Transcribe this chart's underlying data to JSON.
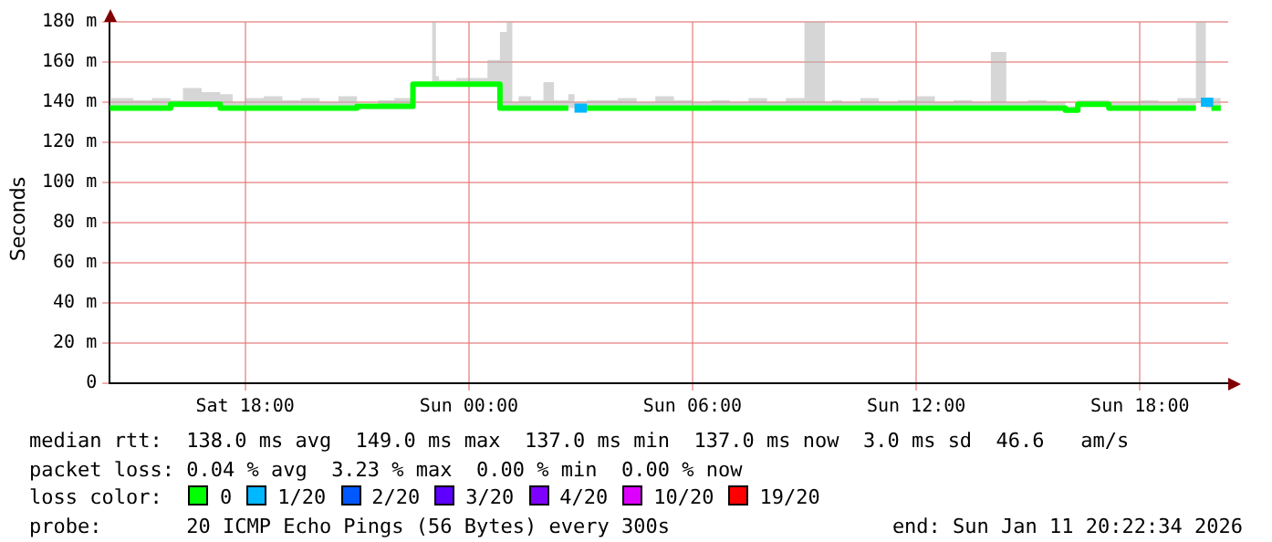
{
  "chart_data": {
    "type": "step",
    "ylabel": "Seconds",
    "legend_title": "loss color:",
    "legend": "bottom",
    "grid": true,
    "marker": "none",
    "xlim": [
      "2026-01-10T14:22",
      "2026-01-11T20:22"
    ],
    "xticks": [
      {
        "value": "2026-01-10T18:00",
        "label": "Sat 18:00"
      },
      {
        "value": "2026-01-11T00:00",
        "label": "Sun 00:00"
      },
      {
        "value": "2026-01-11T06:00",
        "label": "Sun 06:00"
      },
      {
        "value": "2026-01-11T12:00",
        "label": "Sun 12:00"
      },
      {
        "value": "2026-01-11T18:00",
        "label": "Sun 18:00"
      }
    ],
    "ylim": [
      0,
      180
    ],
    "yticks": [
      0,
      {
        "value": 20,
        "label": "20 m"
      },
      {
        "value": 40,
        "label": "40 m"
      },
      {
        "value": 60,
        "label": "60 m"
      },
      {
        "value": 80,
        "label": "80 m"
      },
      {
        "value": 100,
        "label": "100 m"
      },
      {
        "value": 120,
        "label": "120 m"
      },
      {
        "value": 140,
        "label": "140 m"
      },
      {
        "value": 160,
        "label": "160 m"
      },
      {
        "value": 180,
        "label": "180 m"
      }
    ],
    "series": [
      {
        "name": "0",
        "color": "#00ff00",
        "x": [
          "2026-01-10T14:22",
          "2026-01-10T15:00",
          "2026-01-10T15:30",
          "2026-01-10T16:00",
          "2026-01-10T16:20",
          "2026-01-10T16:50",
          "2026-01-10T17:20",
          "2026-01-10T17:40",
          "2026-01-10T18:00",
          "2026-01-10T18:30",
          "2026-01-10T19:00",
          "2026-01-10T19:30",
          "2026-01-10T20:00",
          "2026-01-10T20:30",
          "2026-01-10T21:00",
          "2026-01-10T21:34",
          "2026-01-10T22:00",
          "2026-01-10T22:30",
          "2026-01-10T23:01",
          "2026-01-10T23:07",
          "2026-01-10T23:12",
          "2026-01-10T23:40",
          "2026-01-11T00:00",
          "2026-01-11T00:30",
          "2026-01-11T00:50",
          "2026-01-11T01:01",
          "2026-01-11T01:10",
          "2026-01-11T01:20",
          "2026-01-11T01:40",
          "2026-01-11T02:00",
          "2026-01-11T02:17",
          "2026-01-11T02:40",
          "2026-01-11T02:50",
          "2026-01-11T03:10",
          "2026-01-11T04:00",
          "2026-01-11T04:30",
          "2026-01-11T05:00",
          "2026-01-11T05:30",
          "2026-01-11T06:00",
          "2026-01-11T06:30",
          "2026-01-11T07:00",
          "2026-01-11T07:30",
          "2026-01-11T08:00",
          "2026-01-11T08:30",
          "2026-01-11T09:00",
          "2026-01-11T09:33",
          "2026-01-11T09:45",
          "2026-01-11T10:00",
          "2026-01-11T10:30",
          "2026-01-11T11:00",
          "2026-01-11T11:30",
          "2026-01-11T12:00",
          "2026-01-11T12:30",
          "2026-01-11T13:00",
          "2026-01-11T13:30",
          "2026-01-11T14:00",
          "2026-01-11T14:25",
          "2026-01-11T14:35",
          "2026-01-11T15:00",
          "2026-01-11T15:30",
          "2026-01-11T16:00",
          "2026-01-11T16:20",
          "2026-01-11T16:40",
          "2026-01-11T17:10",
          "2026-01-11T17:37",
          "2026-01-11T18:00",
          "2026-01-11T18:30",
          "2026-01-11T19:00",
          "2026-01-11T19:30",
          "2026-01-11T19:46",
          "2026-01-11T19:55",
          "2026-01-11T20:10"
        ],
        "values": [
          137,
          137,
          137,
          137,
          139,
          139,
          139,
          137,
          137,
          137,
          137,
          137,
          137,
          137,
          137,
          138,
          138,
          138,
          149,
          149,
          149,
          149,
          149,
          149,
          149,
          137,
          137,
          137,
          137,
          137,
          137,
          137,
          null,
          137,
          137,
          137,
          137,
          137,
          137,
          137,
          137,
          137,
          137,
          137,
          137,
          137,
          137,
          137,
          137,
          137,
          137,
          137,
          137,
          137,
          137,
          137,
          137,
          137,
          137,
          137,
          137,
          136,
          139,
          139,
          137,
          137,
          137,
          137,
          137,
          null,
          137,
          137
        ],
        "lower": [
          137,
          137,
          137,
          137,
          139,
          139,
          139,
          137,
          137,
          137,
          137,
          137,
          137,
          137,
          137,
          138,
          138,
          138,
          149,
          149,
          149,
          149,
          149,
          149,
          149,
          137,
          137,
          137,
          137,
          137,
          137,
          137,
          137,
          137,
          137,
          137,
          137,
          137,
          137,
          137,
          137,
          137,
          137,
          137,
          137,
          137,
          137,
          137,
          137,
          137,
          137,
          137,
          137,
          137,
          137,
          137,
          137,
          137,
          137,
          137,
          137,
          136,
          139,
          139,
          137,
          137,
          137,
          137,
          137,
          140,
          137,
          137
        ],
        "upper": [
          141,
          142,
          141,
          142,
          141,
          147,
          145,
          144,
          140,
          142,
          143,
          141,
          142,
          140,
          143,
          139,
          141,
          142,
          150,
          180,
          153,
          151,
          152,
          152,
          161,
          175,
          180,
          140,
          143,
          141,
          150,
          141,
          144,
          140,
          141,
          142,
          140,
          143,
          141,
          140,
          141,
          140,
          142,
          140,
          142,
          180,
          140,
          141,
          140,
          142,
          140,
          141,
          143,
          140,
          141,
          140,
          165,
          140,
          140,
          141,
          140,
          138,
          141,
          141,
          140,
          140,
          141,
          140,
          142,
          180,
          142,
          142
        ]
      },
      {
        "name": "1/20",
        "color": "#00b8ff",
        "x": [
          "2026-01-11T02:50",
          "2026-01-11T03:10",
          "2026-01-11T03:15",
          "2026-01-11T19:38",
          "2026-01-11T19:58"
        ],
        "values": [
          137,
          137,
          null,
          140,
          140
        ]
      },
      {
        "name": "2/20",
        "color": "#0059ff"
      },
      {
        "name": "3/20",
        "color": "#5e00ff"
      },
      {
        "name": "4/20",
        "color": "#7e00ff"
      },
      {
        "name": "10/20",
        "color": "#dd00ff"
      },
      {
        "name": "19/20",
        "color": "#ff0000"
      }
    ],
    "annotations": [
      "median rtt:  138.0 ms avg  149.0 ms max  137.0 ms min  137.0 ms now  3.0 ms sd  46.6   am/s",
      "packet loss: 0.04 % avg  3.23 % max  0.00 % min  0.00 % now",
      "probe:       20 ICMP Echo Pings (56 Bytes) every 300s",
      "end: Sun Jan 11 20:22:34 2026"
    ]
  }
}
